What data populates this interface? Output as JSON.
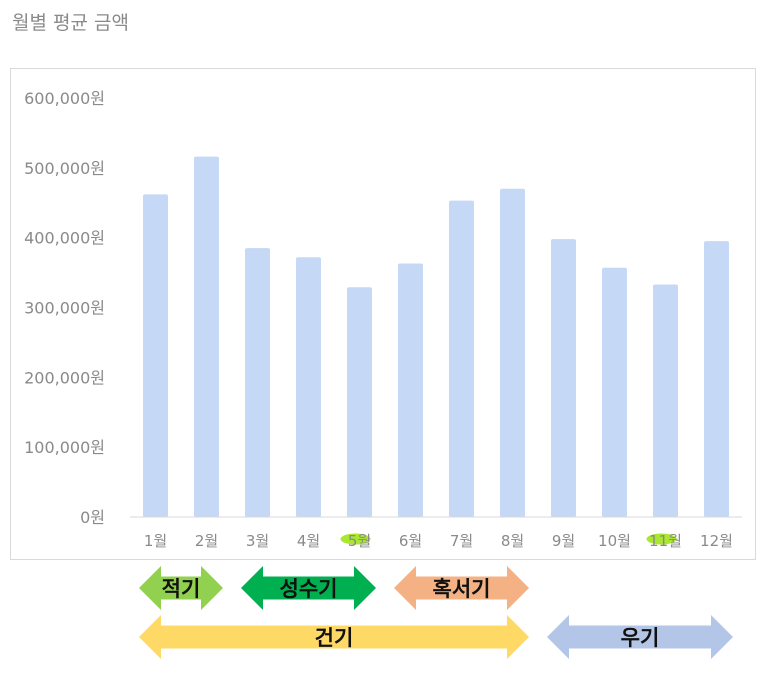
{
  "title": "월별 평균 금액",
  "chart_data": {
    "type": "bar",
    "categories": [
      "1월",
      "2월",
      "3월",
      "4월",
      "5월",
      "6월",
      "7월",
      "8월",
      "9월",
      "10월",
      "11월",
      "12월"
    ],
    "values": [
      462000,
      516000,
      385000,
      372000,
      329000,
      363000,
      453000,
      470000,
      398000,
      357000,
      333000,
      395000
    ],
    "yticks": [
      "0원",
      "100,000원",
      "200,000원",
      "300,000원",
      "400,000원",
      "500,000원",
      "600,000원"
    ],
    "ylim": [
      0,
      600000
    ],
    "grid": false,
    "bar_color": "#c5d8f5",
    "highlighted_categories": [
      "5월",
      "11월"
    ],
    "highlight_color": "#9be40a"
  },
  "seasons": [
    {
      "label": "적기",
      "color": "#92d050",
      "from": "1월",
      "to": "2월",
      "row": 1
    },
    {
      "label": "성수기",
      "color": "#00b050",
      "from": "3월",
      "to": "5월",
      "row": 1
    },
    {
      "label": "혹서기",
      "color": "#f4b183",
      "from": "6월",
      "to": "8월",
      "row": 1
    },
    {
      "label": "건기",
      "color": "#ffd966",
      "from": "1월",
      "to": "8월",
      "row": 2
    },
    {
      "label": "우기",
      "color": "#b4c6e7",
      "from": "9월",
      "to": "12월",
      "row": 2
    }
  ]
}
